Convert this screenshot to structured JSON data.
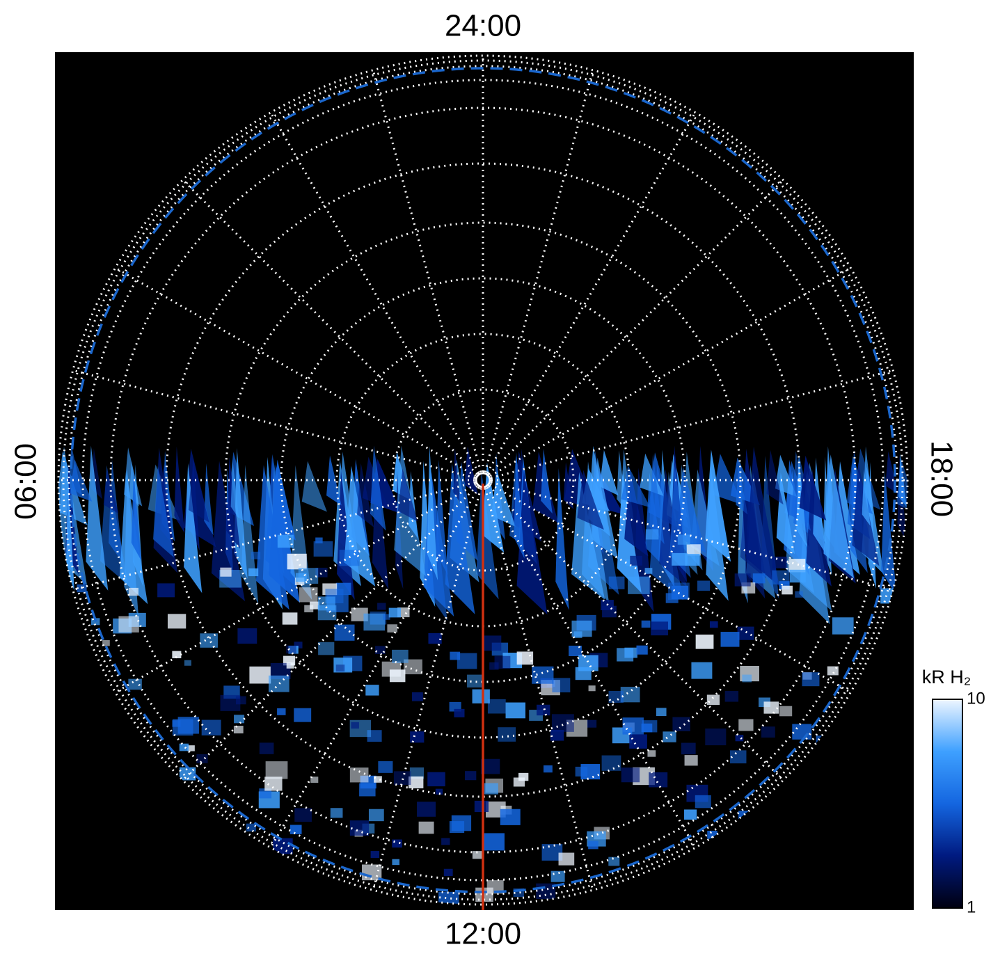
{
  "chart_data": {
    "type": "polar-map",
    "local_time_labels": {
      "top": "24:00",
      "left": "06:00",
      "right": "18:00",
      "bottom": "12:00"
    },
    "grid": true,
    "colorbar": {
      "label": "kR H₂",
      "lim": [
        1,
        10
      ],
      "ticks": [
        1,
        10
      ],
      "log": true,
      "colors": [
        "#000010",
        "#001a80",
        "#1466e0",
        "#3ea0ff",
        "#eef6ff"
      ]
    },
    "reference_line_color": "#d03010",
    "reference_circle_color": "#1a66cc"
  }
}
